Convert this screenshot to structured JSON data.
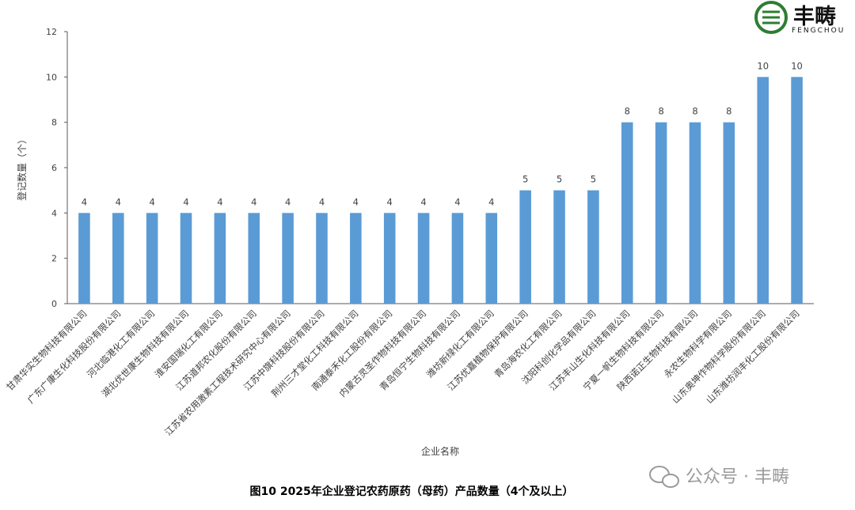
{
  "logo": {
    "name_cn": "丰畴",
    "name_en": "FENGCHOU",
    "colors": {
      "ring": "#2e7d32",
      "text": "#111111"
    }
  },
  "watermark": {
    "text": "公众号 · 丰畴",
    "icon": "wechat-icon",
    "color": "#9a9a9a"
  },
  "caption": "图10 2025年企业登记农药原药（母药）产品数量（4个及以上）",
  "chart_data": {
    "type": "bar",
    "xlabel": "企业名称",
    "ylabel": "登记数量（个）",
    "ylim": [
      0,
      12
    ],
    "yticks": [
      0,
      2,
      4,
      6,
      8,
      10,
      12
    ],
    "grid": false,
    "legend": "none",
    "bar_color": "#5b9bd5",
    "categories": [
      "甘肃华实生物科技有限公司",
      "广东广康生化科技股份有限公司",
      "河北临港化工有限公司",
      "湖北优世康生物科技有限公司",
      "淮安国瑞化工有限公司",
      "江苏道邦农化股份有限公司",
      "江苏省农用激素工程技术研究中心有限公司",
      "江苏中旗科技股份有限公司",
      "荆州三才堂化工科技有限公司",
      "南通泰禾化工股份有限公司",
      "内蒙古灵圣作物科技有限公司",
      "青岛恒宁生物科技有限公司",
      "潍坊新绿化工有限公司",
      "江苏优嘉植物保护有限公司",
      "青岛海农化工有限公司",
      "沈阳科创化学品有限公司",
      "江苏丰山生化科技有限公司",
      "宁夏一帆生物科技有限公司",
      "陕西诺正生物科技有限公司",
      "永农生物科学有限公司",
      "山东奥坤作物科学股份有限公司",
      "山东潍坊润丰化工股份有限公司"
    ],
    "values": [
      4,
      4,
      4,
      4,
      4,
      4,
      4,
      4,
      4,
      4,
      4,
      4,
      4,
      5,
      5,
      5,
      8,
      8,
      8,
      8,
      10,
      10
    ]
  }
}
